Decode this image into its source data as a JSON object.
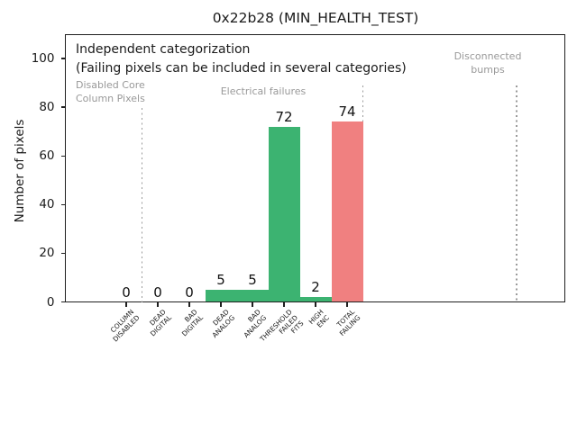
{
  "figure": {
    "title": "0x22b28 (MIN_HEALTH_TEST)"
  },
  "chart_data": {
    "type": "bar",
    "title": "0x22b28 (MIN_HEALTH_TEST)",
    "xlabel": "",
    "ylabel": "Number of pixels",
    "categories": [
      "COLUMN\nDISABLED",
      "DEAD\nDIGITAL",
      "BAD\nDIGITAL",
      "DEAD\nANALOG",
      "BAD\nANALOG",
      "THRESHOLD\nFAILED\nFITS",
      "HIGH\nENC",
      "TOTAL\nFAILING"
    ],
    "values": [
      0,
      0,
      0,
      5,
      5,
      72,
      2,
      74
    ],
    "bar_value_labels": [
      "0",
      "0",
      "0",
      "5",
      "5",
      "72",
      "2",
      "74"
    ],
    "bar_colors": [
      "#3cb371",
      "#3cb371",
      "#3cb371",
      "#3cb371",
      "#3cb371",
      "#3cb371",
      "#3cb371",
      "#f08080"
    ],
    "yticks": [
      0,
      20,
      40,
      60,
      80,
      100
    ],
    "ylim": [
      0,
      110
    ],
    "grid": false,
    "legend": false,
    "separators_x_categories": [
      0.5,
      7.5,
      12.37
    ],
    "annotations": {
      "note_line1": "Independent categorization",
      "note_line2": "(Failing pixels can be included in several categories)",
      "groups": [
        {
          "label": "Disabled Core\nColumn Pixels"
        },
        {
          "label": "Electrical failures"
        },
        {
          "label": "Disconnected\nbumps"
        }
      ],
      "separator_style": "dotted",
      "annotation_gray": "#999999"
    },
    "colors": {
      "bar_green": "#3cb371",
      "bar_red": "#f08080",
      "spine": "#1f1f1f"
    }
  }
}
